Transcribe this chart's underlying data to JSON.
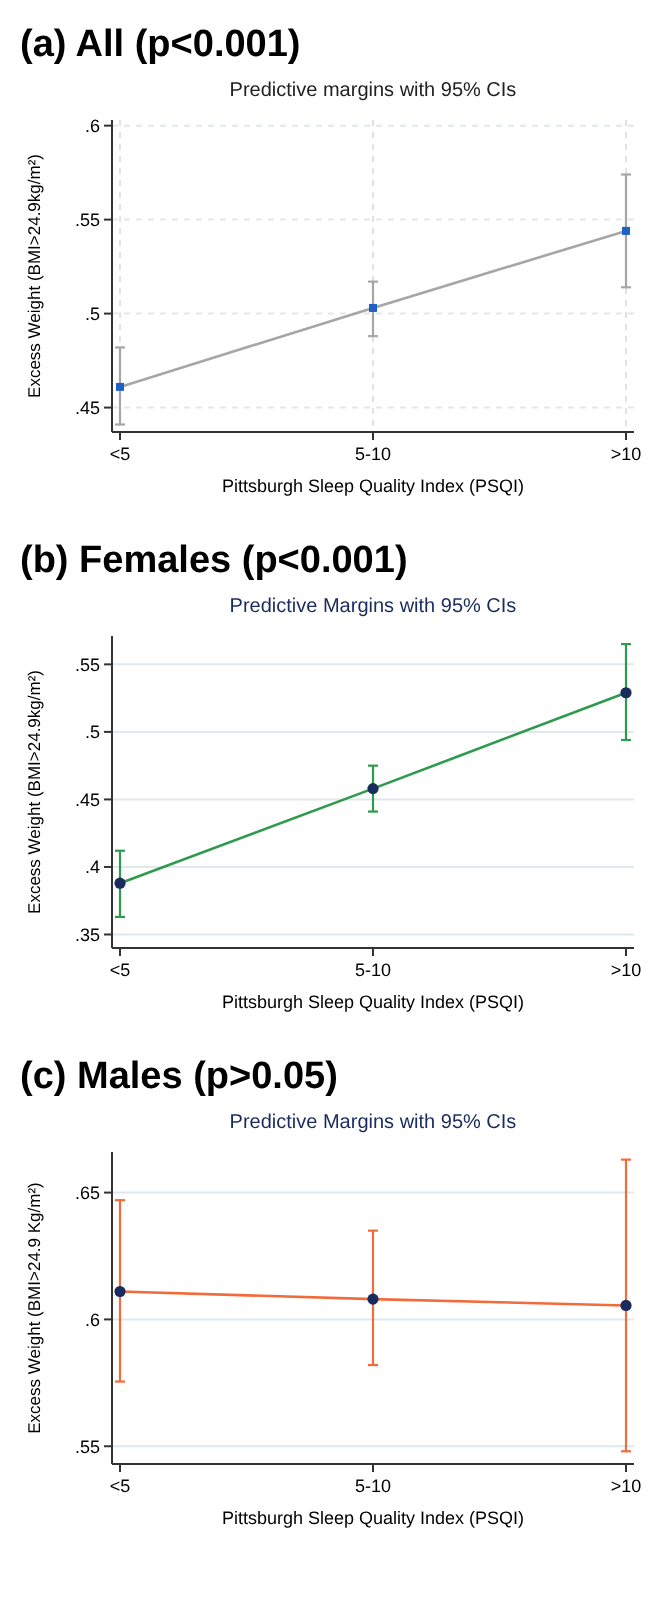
{
  "chart_data": [
    {
      "type": "line",
      "title": "(a) All (p<0.001)",
      "subtitle": "Predictive margins with 95% CIs",
      "xlabel": "Pittsburgh Sleep Quality Index (PSQI)",
      "ylabel": "Excess Weight (BMI>24.9kg/m²)",
      "categories": [
        "<5",
        "5-10",
        ">10"
      ],
      "ylim": [
        0.437,
        0.603
      ],
      "yticks": [
        {
          "value": 0.45,
          "label": ".45"
        },
        {
          "value": 0.5,
          "label": ".5"
        },
        {
          "value": 0.55,
          "label": ".55"
        },
        {
          "value": 0.6,
          "label": ".6"
        }
      ],
      "grid": true,
      "marker": "square",
      "series": [
        {
          "color": "#a6a6a6",
          "colors": [
            "#1f62c4",
            "#1f62c4",
            "#1f62c4"
          ],
          "values": [
            0.461,
            0.503,
            0.544
          ],
          "errors": [
            [
              0.441,
              0.482
            ],
            [
              0.488,
              0.517
            ],
            [
              0.514,
              0.574
            ]
          ]
        }
      ]
    },
    {
      "type": "line",
      "title": "(b) Females (p<0.001)",
      "subtitle": "Predictive Margins with 95% CIs",
      "xlabel": "Pittsburgh Sleep Quality Index (PSQI)",
      "ylabel": "Excess Weight (BMI>24.9kg/m²)",
      "categories": [
        "<5",
        "5-10",
        ">10"
      ],
      "ylim": [
        0.34,
        0.571
      ],
      "yticks": [
        {
          "value": 0.35,
          "label": ".35"
        },
        {
          "value": 0.4,
          "label": ".4"
        },
        {
          "value": 0.45,
          "label": ".45"
        },
        {
          "value": 0.5,
          "label": ".5"
        },
        {
          "value": 0.55,
          "label": ".55"
        }
      ],
      "grid": "y",
      "marker": "circle",
      "series": [
        {
          "color": "#2e9a4e",
          "colors": [
            "#1a2b5e",
            "#1a2b5e",
            "#1a2b5e"
          ],
          "values": [
            0.388,
            0.458,
            0.529
          ],
          "errors": [
            [
              0.363,
              0.412
            ],
            [
              0.441,
              0.475
            ],
            [
              0.494,
              0.565
            ]
          ]
        }
      ]
    },
    {
      "type": "line",
      "title": "(c) Males (p>0.05)",
      "subtitle": "Predictive Margins with 95% CIs",
      "xlabel": "Pittsburgh Sleep Quality Index (PSQI)",
      "ylabel": "Excess Weight (BMI>24.9 Kg/m²)",
      "categories": [
        "<5",
        "5-10",
        ">10"
      ],
      "ylim": [
        0.543,
        0.666
      ],
      "yticks": [
        {
          "value": 0.55,
          "label": ".55"
        },
        {
          "value": 0.6,
          "label": ".6"
        },
        {
          "value": 0.65,
          "label": ".65"
        }
      ],
      "grid": "y",
      "marker": "circle",
      "series": [
        {
          "color": "#f26b3a",
          "colors": [
            "#1a2b5e",
            "#1a2b5e",
            "#1a2b5e"
          ],
          "values": [
            0.611,
            0.608,
            0.6055
          ],
          "errors": [
            [
              0.5755,
              0.647
            ],
            [
              0.582,
              0.635
            ],
            [
              0.548,
              0.663
            ]
          ]
        }
      ]
    }
  ]
}
